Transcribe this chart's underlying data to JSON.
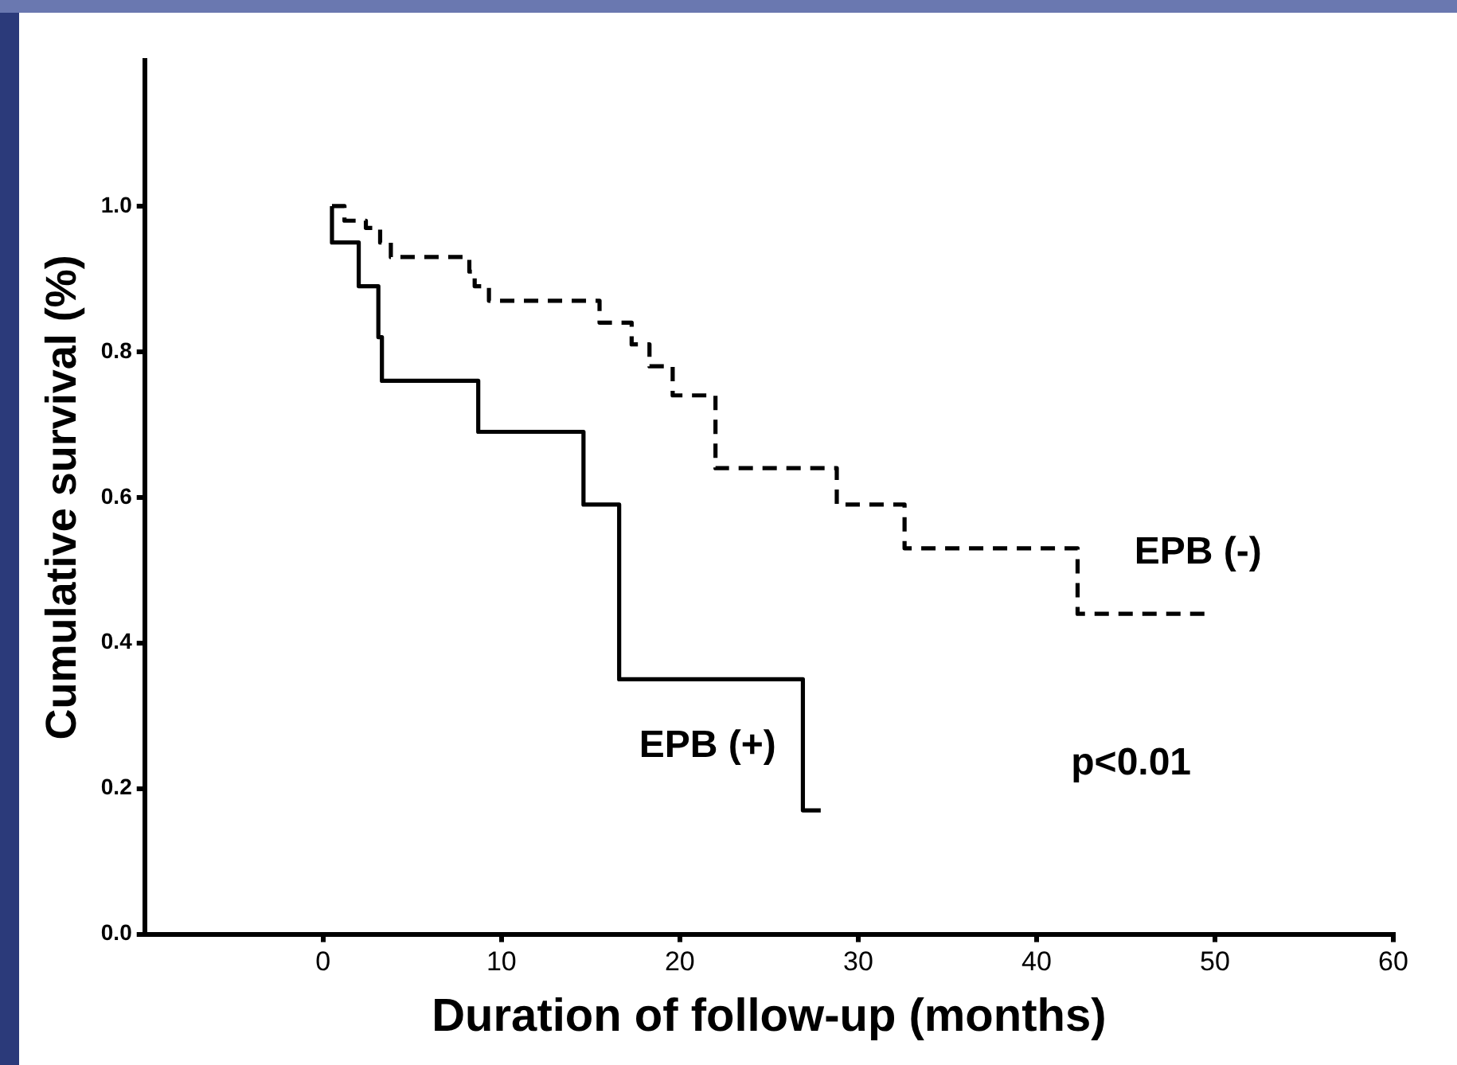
{
  "chart_data": {
    "type": "step",
    "xlabel": "Duration of follow-up (months)",
    "ylabel": "Cumulative survival (%)",
    "xlim": [
      -10,
      60
    ],
    "xticks": [
      0,
      10,
      20,
      30,
      40,
      50,
      60
    ],
    "ylim": [
      0,
      1.2
    ],
    "yticks": [
      {
        "value": 0,
        "label": "0.0"
      },
      {
        "value": 0.2,
        "label": "0.2"
      },
      {
        "value": 0.4,
        "label": "0.4"
      },
      {
        "value": 0.6,
        "label": "0.6"
      },
      {
        "value": 0.8,
        "label": "0.8"
      },
      {
        "value": 1.0,
        "label": "1.0"
      }
    ],
    "grid": false,
    "legend": false,
    "marker": "none",
    "series": [
      {
        "name": "EPB (+)",
        "color": "#000000",
        "line_style": "solid",
        "x": [
          0.5,
          0.5,
          2.0,
          3.1,
          3.3,
          8.7,
          14.6,
          16.6,
          26.9,
          27.9
        ],
        "values": [
          1.0,
          0.95,
          0.89,
          0.82,
          0.76,
          0.69,
          0.59,
          0.35,
          0.17,
          0.17
        ]
      },
      {
        "name": "EPB (-)",
        "color": "#000000",
        "line_style": "dashed",
        "x": [
          0.5,
          1.2,
          2.4,
          3.2,
          3.8,
          8.2,
          8.5,
          9.3,
          15.5,
          17.3,
          18.3,
          19.6,
          22.0,
          28.8,
          32.6,
          42.3,
          49.5
        ],
        "values": [
          1.0,
          0.98,
          0.97,
          0.95,
          0.93,
          0.91,
          0.89,
          0.87,
          0.84,
          0.81,
          0.78,
          0.74,
          0.64,
          0.59,
          0.53,
          0.44,
          0.44
        ]
      }
    ],
    "annotations": [
      "p<0.01"
    ]
  }
}
